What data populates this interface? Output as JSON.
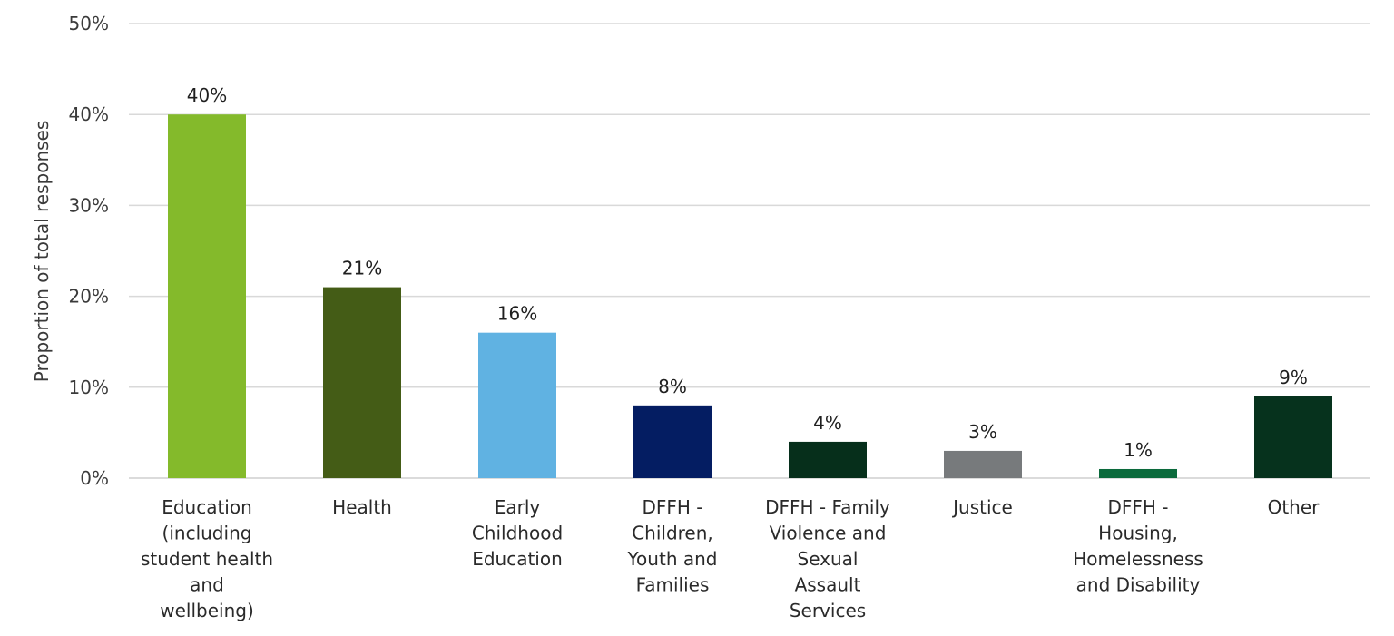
{
  "chart_data": {
    "type": "bar",
    "title": "",
    "xlabel": "",
    "ylabel": "Proportion of total responses",
    "ylim": [
      0,
      50
    ],
    "y_ticks": [
      "0%",
      "10%",
      "20%",
      "30%",
      "40%",
      "50%"
    ],
    "grid": true,
    "legend": "none",
    "categories": [
      [
        "Education",
        "(including",
        "student health",
        "and",
        "wellbeing)"
      ],
      [
        "Health"
      ],
      [
        "Early",
        "Childhood",
        "Education"
      ],
      [
        "DFFH -",
        "Children,",
        "Youth and",
        "Families"
      ],
      [
        "DFFH - Family",
        "Violence and",
        "Sexual",
        "Assault",
        "Services"
      ],
      [
        "Justice"
      ],
      [
        "DFFH -",
        "Housing,",
        "Homelessness",
        "and Disability"
      ],
      [
        "Other"
      ]
    ],
    "values": [
      40,
      21,
      16,
      8,
      4,
      3,
      1,
      9
    ],
    "data_labels": [
      "40%",
      "21%",
      "16%",
      "8%",
      "4%",
      "3%",
      "1%",
      "9%"
    ],
    "colors": [
      "#84BA2B",
      "#445C16",
      "#60B2E2",
      "#041D62",
      "#062F1B",
      "#777A7C",
      "#0B6A3C",
      "#06321D"
    ]
  }
}
